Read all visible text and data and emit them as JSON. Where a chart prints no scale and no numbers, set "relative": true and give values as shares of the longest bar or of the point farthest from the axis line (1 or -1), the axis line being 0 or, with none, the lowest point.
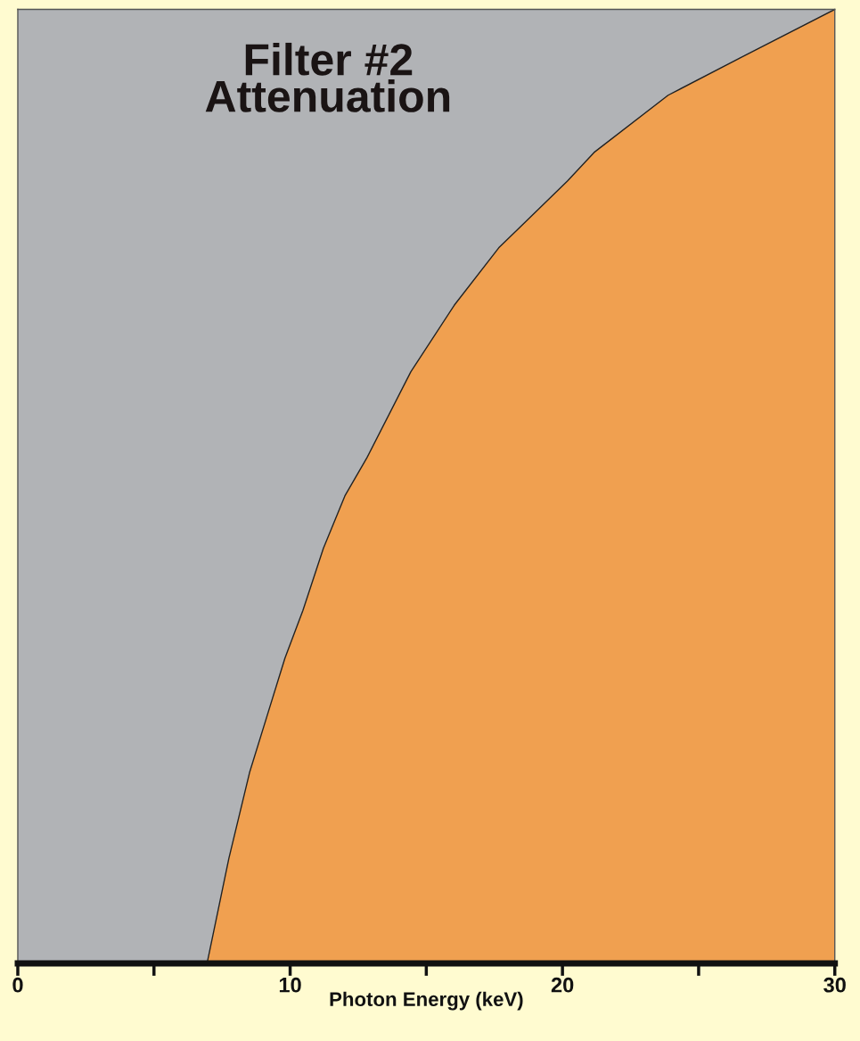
{
  "chart_data": {
    "type": "area",
    "title": "Filter #2\nAttenuation",
    "xlabel": "Photon Energy (keV)",
    "relative": true,
    "xlim": [
      0,
      30
    ],
    "xticks": [
      0,
      {
        "value": 5,
        "label": null
      },
      10,
      {
        "value": 15,
        "label": null
      },
      20,
      {
        "value": 25,
        "label": null
      },
      30
    ],
    "series": [
      {
        "color": "#f0a050",
        "x": [
          6.95,
          7.75,
          8.51,
          9.16,
          9.81,
          10.47,
          11.22,
          12.01,
          12.82,
          14.43,
          16.03,
          17.66,
          20.18,
          21.16,
          23.88,
          26.59,
          30
        ],
        "values": [
          0,
          0.11,
          0.2,
          0.26,
          0.32,
          0.37,
          0.435,
          0.49,
          0.53,
          0.62,
          0.69,
          0.75,
          0.82,
          0.85,
          0.91,
          0.95,
          1
        ]
      }
    ]
  }
}
